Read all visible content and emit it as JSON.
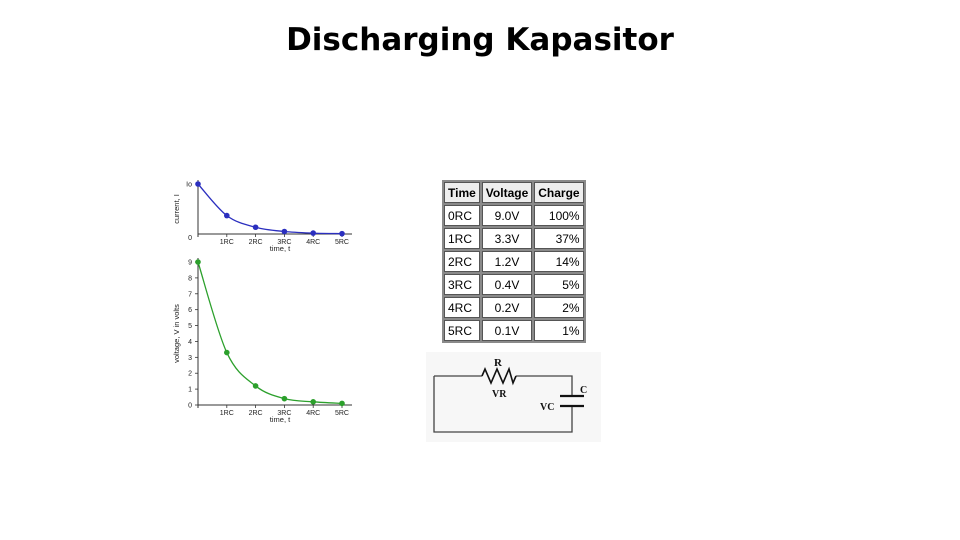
{
  "slide": {
    "title": "Discharging Kapasitor"
  },
  "chart_data": [
    {
      "type": "line",
      "x": [
        "0",
        "1RC",
        "2RC",
        "3RC",
        "4RC",
        "5RC"
      ],
      "values": [
        1.0,
        0.368,
        0.135,
        0.05,
        0.018,
        0.007
      ],
      "xlabel": "time, t",
      "ylabel": "current, I",
      "y_tick_labels": [
        "Io",
        "0"
      ],
      "ylim": [
        0,
        1
      ],
      "color": "#2b2fbf",
      "grid": false
    },
    {
      "type": "line",
      "x": [
        "0",
        "1RC",
        "2RC",
        "3RC",
        "4RC",
        "5RC"
      ],
      "values": [
        9.0,
        3.3,
        1.2,
        0.4,
        0.2,
        0.1
      ],
      "xlabel": "time, t",
      "ylabel": "voltage, V in volts",
      "y_ticks": [
        "0",
        "1",
        "2",
        "3",
        "4",
        "5",
        "6",
        "7",
        "8",
        "9"
      ],
      "ylim": [
        0,
        9
      ],
      "color": "#2ca02c",
      "grid": false
    }
  ],
  "table": {
    "headers": [
      "Time",
      "Voltage",
      "Charge"
    ],
    "rows": [
      [
        "0RC",
        "9.0V",
        "100%"
      ],
      [
        "1RC",
        "3.3V",
        "37%"
      ],
      [
        "2RC",
        "1.2V",
        "14%"
      ],
      [
        "3RC",
        "0.4V",
        "5%"
      ],
      [
        "4RC",
        "0.2V",
        "2%"
      ],
      [
        "5RC",
        "0.1V",
        "1%"
      ]
    ]
  },
  "circuit": {
    "resistor_label": "R",
    "resistor_voltage_label": "VR",
    "capacitor_label": "C",
    "capacitor_voltage_label": "VC"
  }
}
